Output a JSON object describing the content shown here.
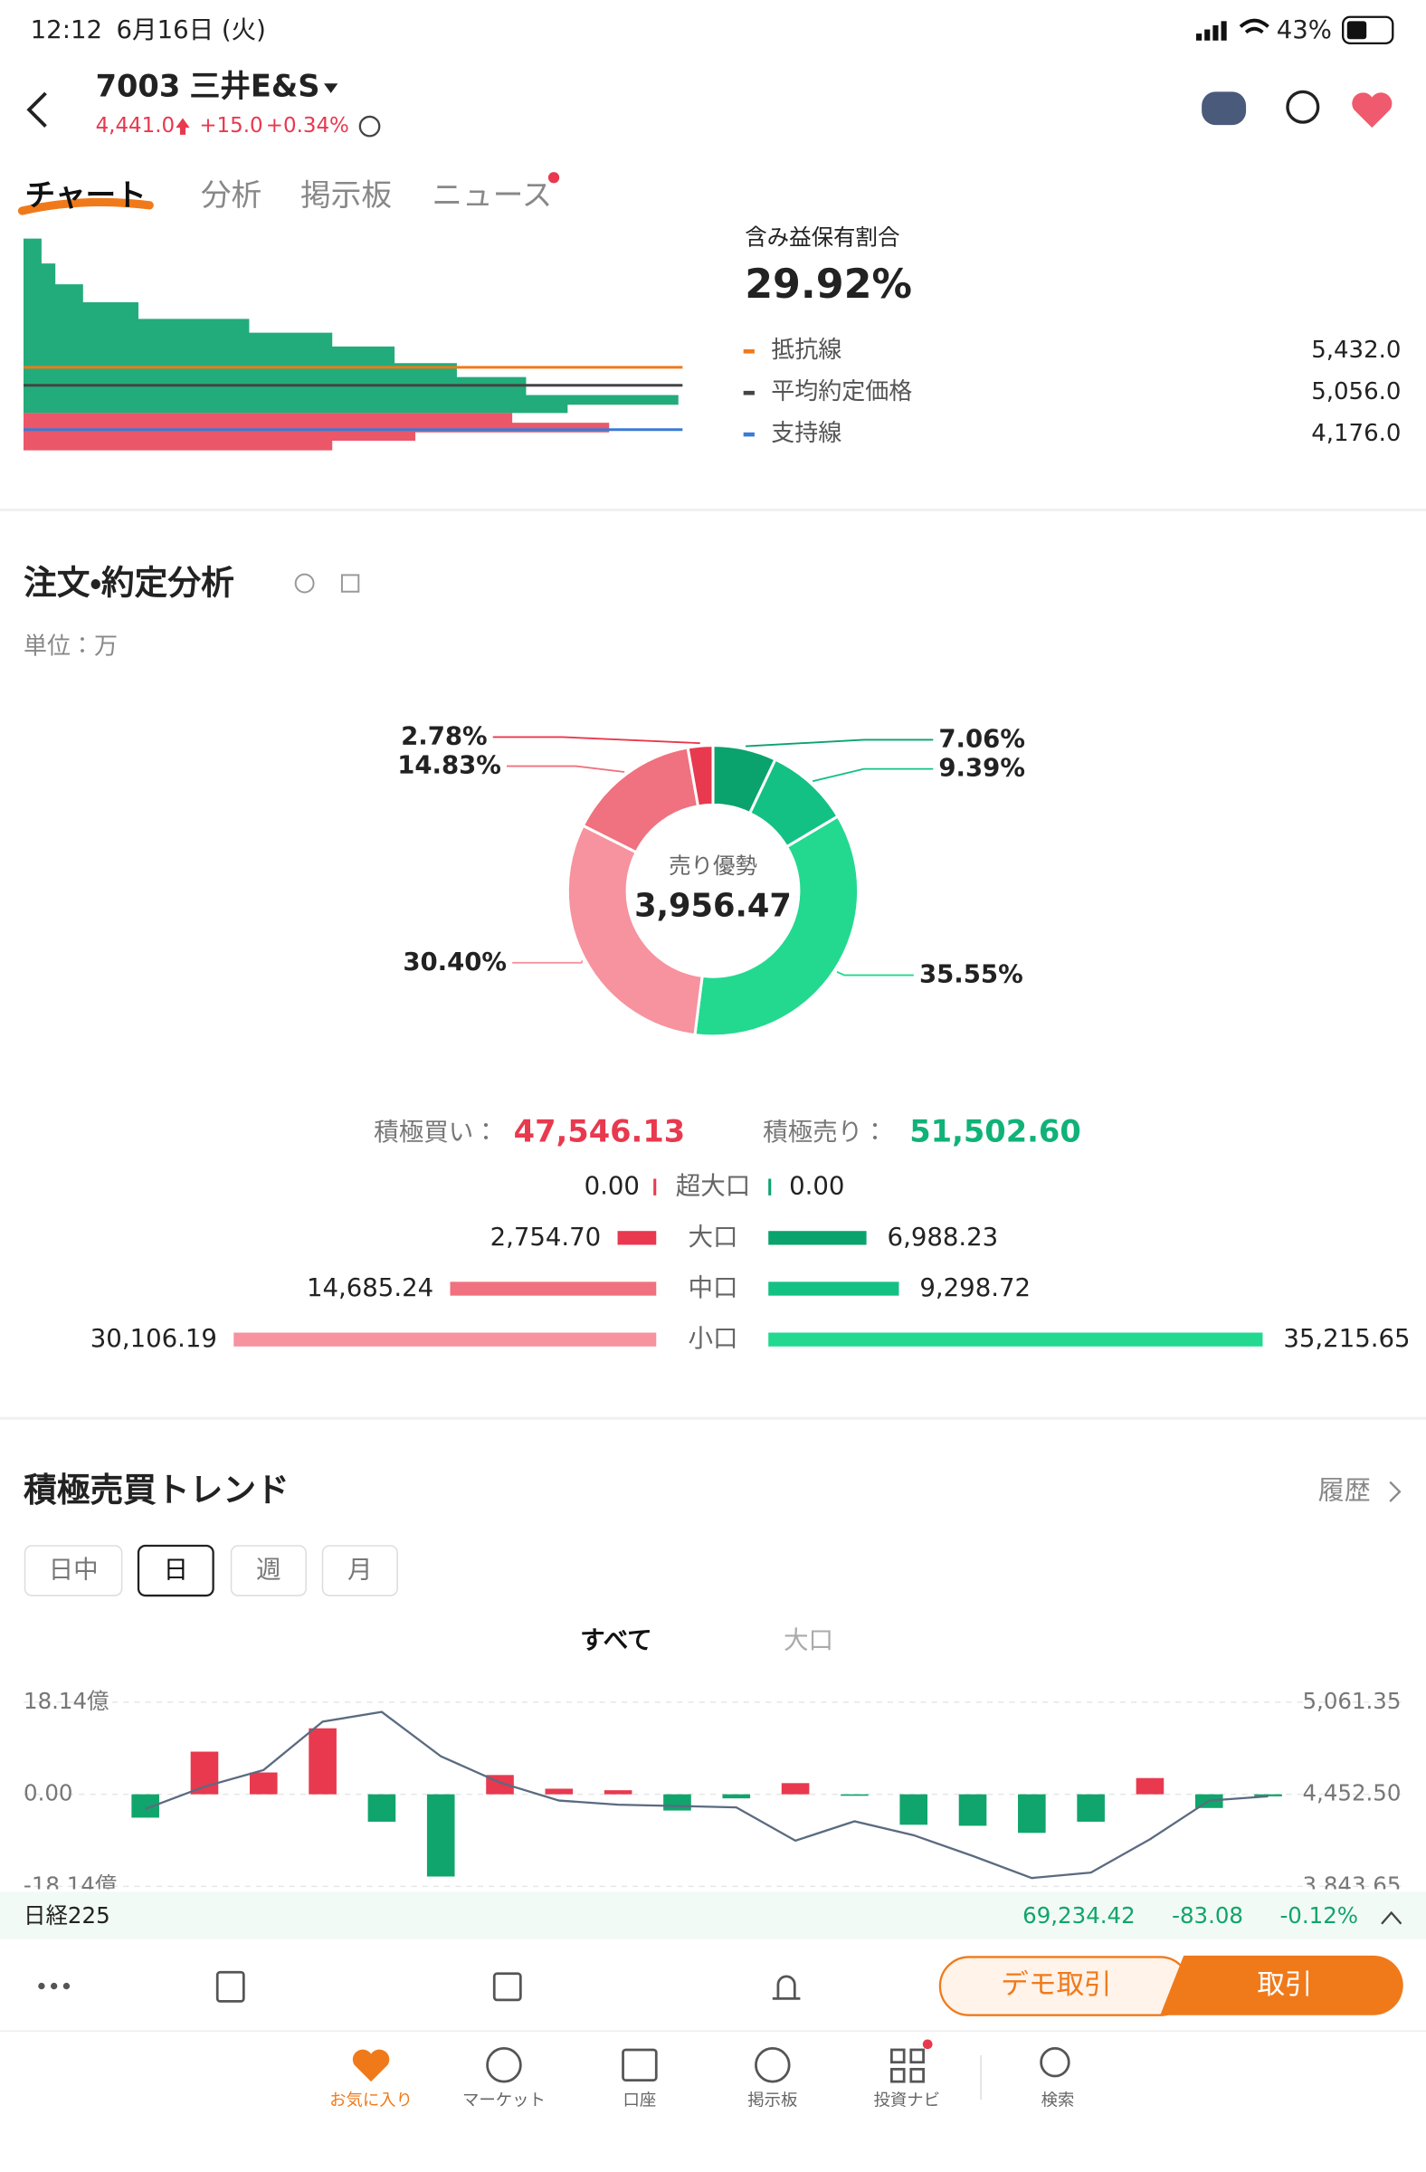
{
  "status_bar": {
    "time": "12:12",
    "date": "6月16日 (火)",
    "battery": "43%"
  },
  "header": {
    "code": "7003",
    "name": "三井E&S",
    "price": "4,441.0",
    "change": "+15.0",
    "change_pct": "+0.34%"
  },
  "tabs": [
    "チャート",
    "分析",
    "掲示板",
    "ニュース"
  ],
  "profile": {
    "ratio_label": "含み益保有割合",
    "ratio": "29.92%",
    "lines": [
      {
        "name": "抵抗線",
        "value": "5,432.0",
        "color": "#f07a1a"
      },
      {
        "name": "平均約定価格",
        "value": "5,056.0",
        "color": "#444444"
      },
      {
        "name": "支持線",
        "value": "4,176.0",
        "color": "#3a7bd5"
      }
    ]
  },
  "order_analysis": {
    "title": "注文・約定分析",
    "unit": "単位：万"
  },
  "trend": {
    "title": "積極売買トレンド",
    "history": "履歴",
    "periods": [
      "日中",
      "日",
      "週",
      "月"
    ],
    "filters": [
      "すべて",
      "大口"
    ]
  },
  "chart_data": [
    {
      "type": "pie",
      "center_label": "売り優勢",
      "center_value": "3,956.47",
      "values": [
        7.06,
        9.39,
        35.55,
        30.4,
        14.83,
        2.78
      ],
      "value_labels": [
        "7.06%",
        "9.39%",
        "35.55%",
        "30.40%",
        "14.83%",
        "2.78%"
      ],
      "colors": [
        "#0aa36d",
        "#14c184",
        "#22d98f",
        "#f7929f",
        "#f0717f",
        "#e8394f"
      ]
    },
    {
      "type": "butterfly",
      "categories": [
        "超大口",
        "大口",
        "中口",
        "小口"
      ],
      "series": [
        {
          "name": "積極買い：",
          "total": "47,546.13",
          "color": "#e8394f",
          "colors": [
            "#e8394f",
            "#e8394f",
            "#f0717f",
            "#f7929f"
          ],
          "values": [
            0.0,
            2754.7,
            14685.24,
            30106.19
          ],
          "value_labels": [
            "0.00",
            "2,754.70",
            "14,685.24",
            "30,106.19"
          ]
        },
        {
          "name": "積極売り：",
          "total": "51,502.60",
          "color": "#10b277",
          "colors": [
            "#0aa36d",
            "#0aa36d",
            "#14c184",
            "#22d98f"
          ],
          "values": [
            0.0,
            6988.23,
            9298.72,
            35215.65
          ],
          "value_labels": [
            "0.00",
            "6,988.23",
            "9,298.72",
            "35,215.65"
          ]
        }
      ]
    },
    {
      "type": "bar",
      "categories": [
        null,
        null,
        null,
        null,
        null,
        null,
        null,
        null,
        null,
        null,
        null,
        null,
        null,
        null,
        null,
        null,
        null,
        null,
        null,
        null
      ],
      "ylim": [
        -18.14,
        18.14
      ],
      "yticks": [
        {
          "value": 18.14,
          "label": "18.14億"
        },
        {
          "value": 0,
          "label": "0.00"
        },
        {
          "value": -18.14,
          "label": "-18.14億"
        }
      ],
      "y2lim": [
        3843.65,
        5061.35
      ],
      "y2ticks": [
        {
          "value": 5061.35,
          "label": "5,061.35"
        },
        {
          "value": 4452.5,
          "label": "4,452.50"
        },
        {
          "value": 3843.65,
          "label": "3,843.65"
        }
      ],
      "grid": true,
      "series": [
        {
          "color_up": "#e8394f",
          "color_down": "#10a56c",
          "values": [
            -4.6,
            8.4,
            4.3,
            13.0,
            -5.4,
            -16.2,
            3.8,
            1.1,
            0.8,
            -3.2,
            -0.8,
            2.2,
            -0.3,
            -6.0,
            -6.2,
            -7.6,
            -5.4,
            3.2,
            -2.7,
            -0.4
          ]
        },
        {
          "axis": "y2",
          "color": "#5a6b80",
          "values": [
            4356,
            4503,
            4613,
            4933,
            4997,
            4704,
            4530,
            4411,
            4384,
            4375,
            4366,
            4146,
            4274,
            4182,
            4045,
            3899,
            3935,
            4155,
            4411,
            4439
          ]
        }
      ]
    }
  ],
  "ticker": {
    "name": "日経225",
    "price": "69,234.42",
    "change": "-83.08",
    "change_pct": "-0.12%"
  },
  "actions": {
    "demo": "デモ取引",
    "trade": "取引"
  },
  "nav": [
    "お気に入り",
    "マーケット",
    "口座",
    "掲示板",
    "投資ナビ",
    "検索"
  ]
}
